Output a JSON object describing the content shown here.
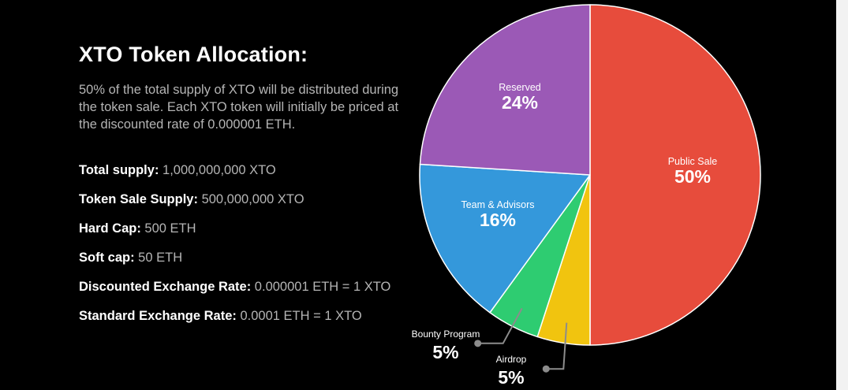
{
  "heading": "XTO Token Allocation:",
  "intro": "50% of the total supply of XTO will be distributed during the token sale. Each XTO token will initially be priced at the discounted rate of 0.000001 ETH.",
  "facts": [
    {
      "label": "Total supply:",
      "value": " 1,000,000,000 XTO"
    },
    {
      "label": "Token Sale Supply:",
      "value": " 500,000,000 XTO"
    },
    {
      "label": "Hard Cap:",
      "value": " 500 ETH"
    },
    {
      "label": "Soft cap:",
      "value": " 50 ETH"
    },
    {
      "label": "Discounted Exchange Rate:",
      "value": " 0.000001 ETH = 1 XTO"
    },
    {
      "label": "Standard Exchange Rate:",
      "value": " 0.0001 ETH = 1 XTO"
    }
  ],
  "chart_data": {
    "type": "pie",
    "title": "",
    "slices": [
      {
        "label": "Public Sale",
        "value": 50,
        "value_label": "50%",
        "color": "#e74c3c"
      },
      {
        "label": "Airdrop",
        "value": 5,
        "value_label": "5%",
        "color": "#f1c40f"
      },
      {
        "label": "Bounty Program",
        "value": 5,
        "value_label": "5%",
        "color": "#2ecc71"
      },
      {
        "label": "Team & Advisors",
        "value": 16,
        "value_label": "16%",
        "color": "#3498db"
      },
      {
        "label": "Reserved",
        "value": 24,
        "value_label": "24%",
        "color": "#9b59b6"
      }
    ],
    "start": "12 o'clock",
    "direction": "clockwise",
    "label_placement": {
      "Public Sale": "inside",
      "Reserved": "inside",
      "Team & Advisors": "inside",
      "Airdrop": "outside-callout",
      "Bounty Program": "outside-callout"
    },
    "legend": "none"
  },
  "colors": {
    "background": "#000000",
    "heading": "#ffffff",
    "body_text": "#b5b5b5",
    "callout_line": "#8c8c8c"
  }
}
